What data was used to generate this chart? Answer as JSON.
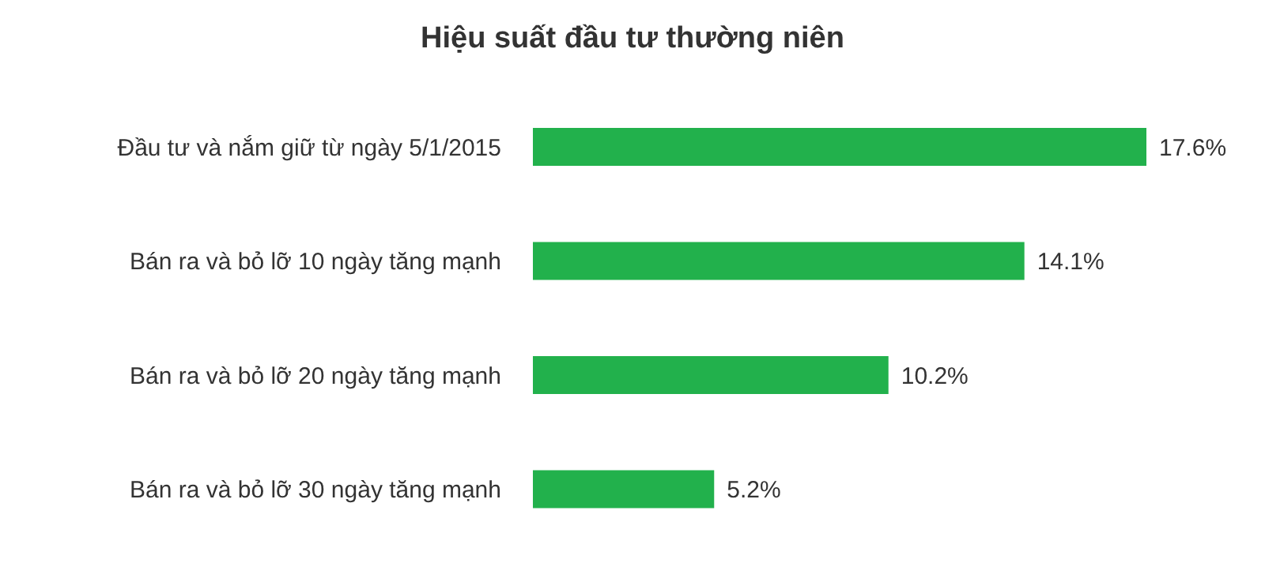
{
  "chart_data": {
    "type": "bar",
    "orientation": "horizontal",
    "title": "Hiệu suất đầu tư thường niên",
    "categories": [
      "Đầu tư và nắm giữ từ ngày 5/1/2015",
      "Bán ra và bỏ lỡ 10 ngày tăng mạnh",
      "Bán ra và bỏ lỡ 20 ngày tăng mạnh",
      "Bán ra và bỏ lỡ 30 ngày tăng mạnh"
    ],
    "values": [
      17.6,
      14.1,
      10.2,
      5.2
    ],
    "value_labels": [
      "17.6%",
      "14.1%",
      "10.2%",
      "5.2%"
    ],
    "color": "#22b14c"
  }
}
